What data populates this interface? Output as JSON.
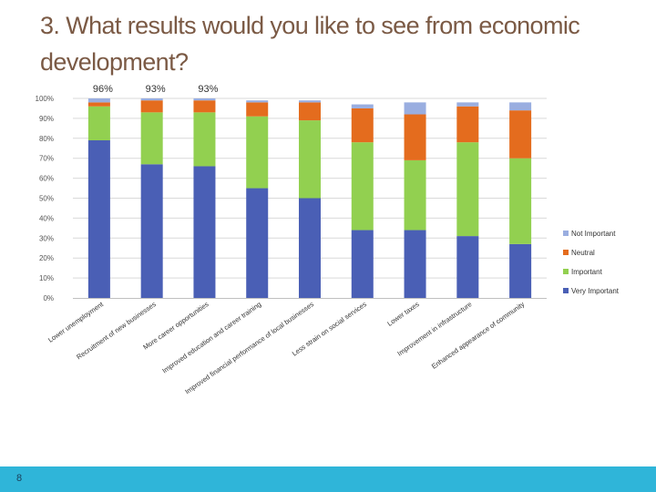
{
  "slide": {
    "title": "3. What results would you like to see from economic development?",
    "page_number": "8"
  },
  "colors": {
    "very_important": "#4a5fb5",
    "important": "#92d050",
    "neutral": "#e46c1e",
    "not_important": "#9aaee0",
    "gridline": "#d9d9d9",
    "footer": "#2fb5d9",
    "title": "#7b5a45"
  },
  "chart_data": {
    "type": "bar",
    "stacked": true,
    "ylim": [
      0,
      100
    ],
    "yticks": [
      0,
      10,
      20,
      30,
      40,
      50,
      60,
      70,
      80,
      90,
      100
    ],
    "ytick_suffix": "%",
    "grid": true,
    "legend_position": "right",
    "categories": [
      "Lower unemployment",
      "Recruitment of new businesses",
      "More career opportunities",
      "Improved education and career training",
      "Improved financial performance of local businesses",
      "Less strain on social services",
      "Lower taxes",
      "Improvement in infrastructure",
      "Enhanced appearance of community"
    ],
    "series": [
      {
        "name": "Very Important",
        "color_key": "very_important",
        "values": [
          79,
          67,
          66,
          55,
          50,
          34,
          34,
          31,
          27
        ]
      },
      {
        "name": "Important",
        "color_key": "important",
        "values": [
          17,
          26,
          27,
          36,
          39,
          44,
          35,
          47,
          43
        ]
      },
      {
        "name": "Neutral",
        "color_key": "neutral",
        "values": [
          2,
          6,
          6,
          7,
          9,
          17,
          23,
          18,
          24
        ]
      },
      {
        "name": "Not Important",
        "color_key": "not_important",
        "values": [
          2,
          1,
          1,
          1,
          1,
          2,
          6,
          2,
          4
        ]
      }
    ],
    "legend_order": [
      "Not Important",
      "Neutral",
      "Important",
      "Very Important"
    ],
    "annotations": [
      {
        "category_index": 0,
        "text": "96%"
      },
      {
        "category_index": 1,
        "text": "93%"
      },
      {
        "category_index": 2,
        "text": "93%"
      }
    ]
  }
}
